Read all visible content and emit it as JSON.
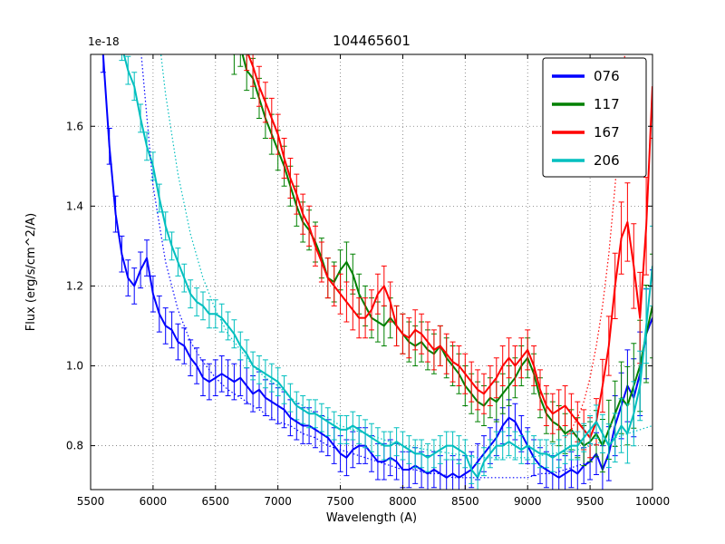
{
  "chart_data": {
    "type": "line",
    "title": "104465601",
    "xlabel": "Wavelength (A)",
    "ylabel": "Flux (erg/s/cm^2/A)",
    "y_offset_label": "1e-18",
    "xlim": [
      5500,
      10000
    ],
    "ylim": [
      0.69,
      1.78
    ],
    "xticks": [
      5500,
      6000,
      6500,
      7000,
      7500,
      8000,
      8500,
      9000,
      9500,
      10000
    ],
    "yticks": [
      0.8,
      1.0,
      1.2,
      1.4,
      1.6
    ],
    "grid": true,
    "legend_position": "upper right",
    "legend_labels": [
      "076",
      "117",
      "167",
      "206"
    ],
    "series": [
      {
        "label": "076",
        "color": "#0000ff",
        "style": "solid",
        "err": 0.045,
        "err_right": 0.12,
        "x_start": 5500,
        "x_step": 50,
        "y": [
          2.3,
          2.0,
          1.78,
          1.55,
          1.38,
          1.28,
          1.22,
          1.2,
          1.24,
          1.27,
          1.18,
          1.13,
          1.1,
          1.09,
          1.06,
          1.05,
          1.02,
          1.0,
          0.97,
          0.96,
          0.97,
          0.98,
          0.97,
          0.96,
          0.97,
          0.95,
          0.93,
          0.94,
          0.92,
          0.91,
          0.9,
          0.89,
          0.87,
          0.86,
          0.85,
          0.85,
          0.84,
          0.83,
          0.82,
          0.8,
          0.78,
          0.77,
          0.79,
          0.8,
          0.8,
          0.78,
          0.76,
          0.76,
          0.77,
          0.76,
          0.74,
          0.74,
          0.75,
          0.74,
          0.73,
          0.74,
          0.73,
          0.72,
          0.73,
          0.72,
          0.73,
          0.74,
          0.76,
          0.78,
          0.8,
          0.82,
          0.85,
          0.87,
          0.86,
          0.83,
          0.8,
          0.77,
          0.75,
          0.74,
          0.73,
          0.72,
          0.73,
          0.74,
          0.73,
          0.75,
          0.76,
          0.78,
          0.74,
          0.78,
          0.85,
          0.9,
          0.95,
          0.92,
          0.98,
          1.08,
          1.12
        ]
      },
      {
        "label": "117",
        "color": "#008000",
        "style": "solid",
        "err": 0.05,
        "err_right": 0.13,
        "x_start": 6550,
        "x_step": 50,
        "y": [
          1.9,
          1.84,
          1.78,
          1.8,
          1.74,
          1.72,
          1.67,
          1.62,
          1.58,
          1.54,
          1.5,
          1.45,
          1.4,
          1.36,
          1.34,
          1.31,
          1.27,
          1.22,
          1.21,
          1.24,
          1.26,
          1.23,
          1.18,
          1.15,
          1.12,
          1.11,
          1.1,
          1.12,
          1.1,
          1.08,
          1.06,
          1.05,
          1.06,
          1.04,
          1.03,
          1.05,
          1.02,
          1.0,
          0.98,
          0.95,
          0.93,
          0.91,
          0.9,
          0.92,
          0.91,
          0.93,
          0.95,
          0.97,
          1.0,
          1.02,
          0.98,
          0.92,
          0.88,
          0.86,
          0.85,
          0.83,
          0.84,
          0.82,
          0.8,
          0.81,
          0.83,
          0.8,
          0.84,
          0.88,
          0.92,
          0.9,
          0.95,
          1.0,
          1.08,
          1.15
        ]
      },
      {
        "label": "167",
        "color": "#ff0000",
        "style": "solid",
        "err": 0.05,
        "err_right": 0.13,
        "x_start": 6650,
        "x_step": 50,
        "y": [
          1.92,
          1.85,
          1.79,
          1.75,
          1.7,
          1.66,
          1.62,
          1.58,
          1.52,
          1.47,
          1.43,
          1.38,
          1.35,
          1.3,
          1.26,
          1.22,
          1.2,
          1.18,
          1.16,
          1.14,
          1.12,
          1.12,
          1.14,
          1.18,
          1.2,
          1.16,
          1.1,
          1.08,
          1.07,
          1.09,
          1.08,
          1.06,
          1.04,
          1.05,
          1.03,
          1.01,
          1.0,
          0.98,
          0.96,
          0.94,
          0.93,
          0.95,
          0.97,
          1.0,
          1.02,
          1.0,
          1.02,
          1.04,
          1.0,
          0.94,
          0.9,
          0.88,
          0.89,
          0.9,
          0.88,
          0.86,
          0.84,
          0.82,
          0.86,
          0.95,
          1.05,
          1.2,
          1.32,
          1.36,
          1.25,
          1.12,
          1.35,
          1.7
        ]
      },
      {
        "label": "206",
        "color": "#00bfbf",
        "style": "solid",
        "err": 0.035,
        "err_right": 0.1,
        "x_start": 5500,
        "x_step": 50,
        "y": [
          2.6,
          2.35,
          2.15,
          2.0,
          1.88,
          1.8,
          1.74,
          1.7,
          1.62,
          1.55,
          1.5,
          1.42,
          1.35,
          1.3,
          1.26,
          1.22,
          1.18,
          1.16,
          1.15,
          1.13,
          1.13,
          1.12,
          1.1,
          1.08,
          1.05,
          1.03,
          1.0,
          0.99,
          0.98,
          0.97,
          0.96,
          0.94,
          0.92,
          0.9,
          0.89,
          0.88,
          0.88,
          0.87,
          0.86,
          0.85,
          0.84,
          0.84,
          0.85,
          0.84,
          0.83,
          0.82,
          0.81,
          0.8,
          0.8,
          0.81,
          0.8,
          0.79,
          0.78,
          0.78,
          0.77,
          0.78,
          0.79,
          0.8,
          0.8,
          0.79,
          0.78,
          0.74,
          0.72,
          0.76,
          0.78,
          0.8,
          0.8,
          0.81,
          0.8,
          0.79,
          0.8,
          0.79,
          0.78,
          0.78,
          0.77,
          0.78,
          0.79,
          0.8,
          0.8,
          0.82,
          0.84,
          0.86,
          0.83,
          0.8,
          0.82,
          0.85,
          0.83,
          0.88,
          0.95,
          1.1,
          1.25
        ]
      },
      {
        "label": null,
        "name": "model-076",
        "color": "#0000ff",
        "style": "dotted",
        "x_start": 5900,
        "x_step": 100,
        "y": [
          1.8,
          1.45,
          1.26,
          1.14,
          1.06,
          1.01,
          0.97,
          0.94,
          0.92,
          0.9,
          0.88,
          0.86,
          0.85,
          0.83,
          0.82,
          0.8,
          0.79,
          0.78,
          0.77,
          0.76,
          0.75,
          0.74,
          0.74,
          0.73,
          0.73,
          0.72,
          0.72,
          0.72,
          0.72,
          0.72,
          0.72,
          0.72,
          0.73,
          0.73,
          0.74,
          0.75,
          0.76
        ]
      },
      {
        "label": null,
        "name": "model-206",
        "color": "#00bfbf",
        "style": "dotted",
        "x_start": 6000,
        "x_step": 100,
        "y": [
          1.95,
          1.68,
          1.48,
          1.33,
          1.22,
          1.14,
          1.08,
          1.04,
          1.0,
          0.97,
          0.95,
          0.92,
          0.9,
          0.88,
          0.87,
          0.85,
          0.84,
          0.83,
          0.82,
          0.81,
          0.8,
          0.795,
          0.79,
          0.785,
          0.78,
          0.775,
          0.77,
          0.77,
          0.77,
          0.77,
          0.77,
          0.775,
          0.78,
          0.785,
          0.79,
          0.8,
          0.81,
          0.82,
          0.83,
          0.84,
          0.85
        ]
      },
      {
        "label": null,
        "name": "model-167",
        "color": "#ff0000",
        "style": "dotted",
        "x_start": 9300,
        "x_step": 50,
        "y": [
          0.82,
          0.84,
          0.87,
          0.91,
          0.97,
          1.05,
          1.15,
          1.28,
          1.45,
          1.65,
          1.88
        ]
      }
    ]
  }
}
